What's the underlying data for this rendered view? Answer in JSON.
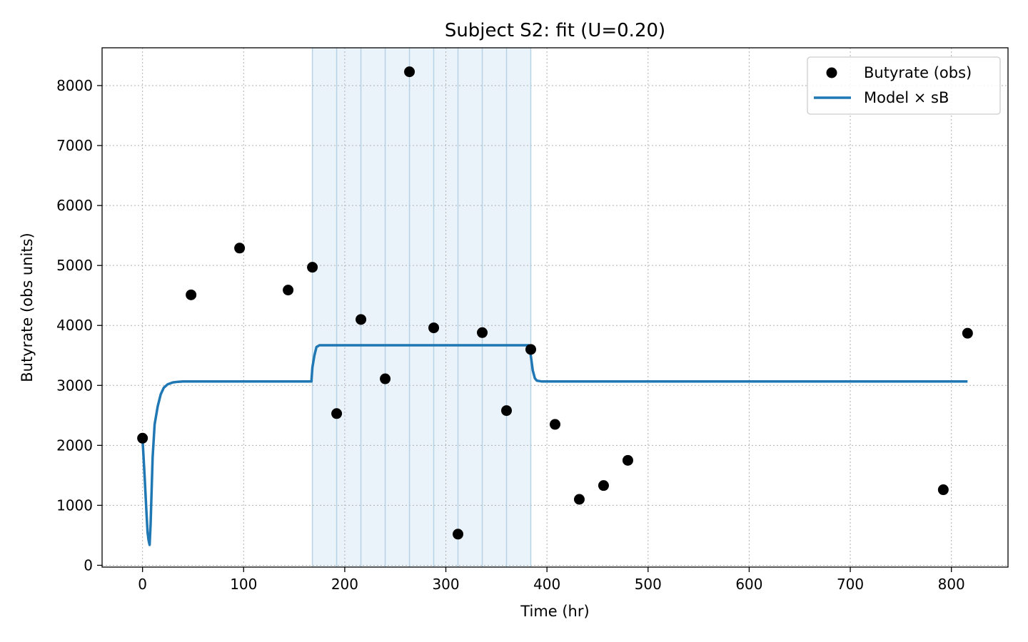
{
  "chart_data": {
    "type": "scatter",
    "title": "Subject S2: fit (U=0.20)",
    "xlabel": "Time (hr)",
    "ylabel": "Butyrate (obs units)",
    "xlim": [
      -40,
      856
    ],
    "ylim": [
      -30,
      8630
    ],
    "xticks": [
      0,
      100,
      200,
      300,
      400,
      500,
      600,
      700,
      800
    ],
    "yticks": [
      0,
      1000,
      2000,
      3000,
      4000,
      5000,
      6000,
      7000,
      8000
    ],
    "grid": true,
    "legend_position": "top-right",
    "colors": {
      "obs": "#000000",
      "model": "#1f77b4",
      "band": "#deebf7"
    },
    "shaded_region": {
      "x_start": 168,
      "x_end": 384
    },
    "vertical_lines": [
      192,
      216,
      240,
      264,
      288,
      312,
      336,
      360
    ],
    "series": [
      {
        "name": "Butyrate (obs)",
        "kind": "scatter",
        "x": [
          0,
          48,
          96,
          144,
          168,
          192,
          216,
          240,
          264,
          288,
          312,
          336,
          360,
          384,
          408,
          432,
          456,
          480,
          792,
          816
        ],
        "y": [
          2120,
          4510,
          5290,
          4590,
          4970,
          2530,
          4100,
          3110,
          8230,
          3960,
          520,
          3880,
          2580,
          3600,
          2350,
          1100,
          1330,
          1750,
          1260,
          3870
        ]
      },
      {
        "name": "Model × sB",
        "kind": "line",
        "x": [
          0,
          2,
          4,
          5,
          6,
          7,
          8,
          10,
          12,
          15,
          18,
          21,
          25,
          30,
          35,
          40,
          60,
          100,
          167,
          168,
          170,
          172,
          175,
          180,
          200,
          300,
          382,
          384,
          386,
          388,
          390,
          395,
          420,
          600,
          816
        ],
        "y": [
          2100,
          1500,
          850,
          550,
          420,
          340,
          700,
          1800,
          2350,
          2650,
          2850,
          2960,
          3020,
          3050,
          3060,
          3065,
          3065,
          3065,
          3065,
          3300,
          3500,
          3640,
          3670,
          3670,
          3670,
          3670,
          3670,
          3500,
          3250,
          3120,
          3080,
          3065,
          3065,
          3065,
          3065
        ]
      }
    ]
  }
}
